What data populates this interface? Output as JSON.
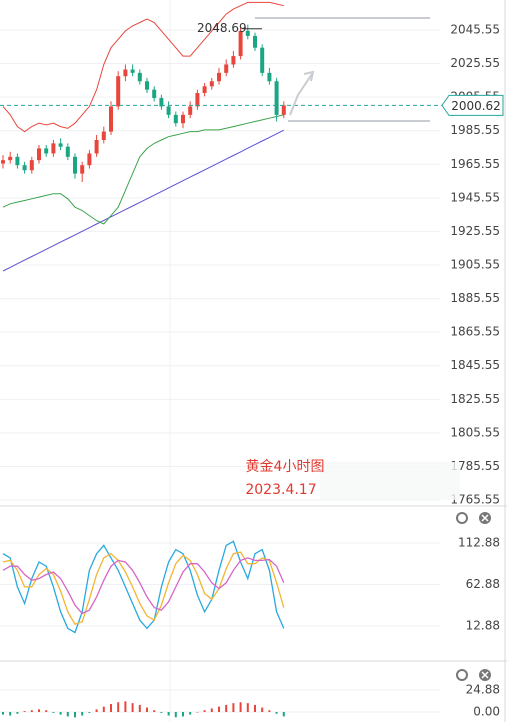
{
  "chart_data": [
    {
      "type": "candlestick",
      "open": [
        1966,
        1968,
        1970,
        1965,
        1962,
        1968,
        1975,
        1972,
        1978,
        1976,
        1970,
        1960,
        1965,
        1972,
        1980,
        1985,
        2000,
        2018,
        2022,
        2020,
        2015,
        2010,
        2005,
        2000,
        1995,
        1990,
        1995,
        2000,
        2008,
        2012,
        2015,
        2020,
        2025,
        2030,
        2045,
        2042,
        2035,
        2020,
        2015,
        1995
      ],
      "high": [
        1971,
        1973,
        1972,
        1967,
        1970,
        1977,
        1977,
        1980,
        1981,
        1978,
        1972,
        1967,
        1974,
        1983,
        1988,
        2003,
        2021,
        2025,
        2025,
        2022,
        2017,
        2012,
        2007,
        2003,
        1997,
        1997,
        2003,
        2010,
        2014,
        2017,
        2023,
        2028,
        2033,
        2047,
        2048.69,
        2044,
        2037,
        2023,
        2017,
        2003
      ],
      "low": [
        1963,
        1966,
        1963,
        1960,
        1960,
        1966,
        1970,
        1970,
        1974,
        1968,
        1957,
        1955,
        1963,
        1970,
        1978,
        1983,
        1998,
        2015,
        2018,
        2013,
        2008,
        2003,
        1998,
        1993,
        1988,
        1987,
        1993,
        1998,
        2006,
        2010,
        2013,
        2018,
        2023,
        2028,
        2040,
        2033,
        2018,
        2013,
        1991,
        1993
      ],
      "close": [
        1968,
        1970,
        1965,
        1962,
        1968,
        1975,
        1972,
        1978,
        1976,
        1970,
        1960,
        1965,
        1972,
        1980,
        1985,
        2000,
        2018,
        2022,
        2020,
        2015,
        2010,
        2005,
        2000,
        1995,
        1990,
        1995,
        2000,
        2008,
        2012,
        2015,
        2020,
        2025,
        2030,
        2045,
        2042,
        2035,
        2020,
        2015,
        1995,
        2000.62
      ],
      "up_color": "#e8463c",
      "down_color": "#1aa683",
      "series": [
        {
          "color": "#5b4fd6",
          "values": [
            1902,
            1904.15,
            1906.3,
            1908.45,
            1910.6,
            1912.75,
            1914.9,
            1917.05,
            1919.2,
            1921.35,
            1923.5,
            1925.65,
            1927.8,
            1929.95,
            1932.1,
            1934.25,
            1936.4,
            1938.55,
            1940.7,
            1942.85,
            1945,
            1947.15,
            1949.3,
            1951.45,
            1953.6,
            1955.75,
            1957.9,
            1960.05,
            1962.2,
            1964.35,
            1966.5,
            1968.65,
            1970.8,
            1972.95,
            1975.1,
            1977.25,
            1979.4,
            1981.55,
            1983.7,
            1985.85
          ]
        },
        {
          "color": "#e8463c",
          "values": [
            2000,
            1995,
            1988,
            1985,
            1988,
            1990,
            1989,
            1990,
            1988,
            1987,
            1990,
            1995,
            2000,
            2010,
            2025,
            2035,
            2040,
            2045,
            2048,
            2050,
            2052,
            2050,
            2045,
            2040,
            2035,
            2030,
            2030,
            2035,
            2040,
            2045,
            2050,
            2055,
            2058,
            2060,
            2062,
            2062,
            2062,
            2062,
            2061,
            2060
          ]
        },
        {
          "color": "#3aa34a",
          "values": [
            1940,
            1942,
            1943,
            1944,
            1945,
            1946,
            1947,
            1948,
            1948,
            1945,
            1940,
            1938,
            1935,
            1932,
            1930,
            1935,
            1940,
            1950,
            1960,
            1970,
            1975,
            1978,
            1980,
            1982,
            1983,
            1984,
            1985,
            1985,
            1986,
            1986,
            1986,
            1987,
            1988,
            1989,
            1990,
            1991,
            1992,
            1993,
            1994,
            1995
          ]
        }
      ],
      "ylim": [
        1762.6,
        2063.4
      ],
      "yticks": [
        1765.55,
        1785.55,
        1805.55,
        1825.55,
        1845.55,
        1865.55,
        1885.55,
        1905.55,
        1925.55,
        1945.55,
        1965.55,
        1985.55,
        2005.55,
        2025.55,
        2045.55
      ],
      "high_label": 2048.69,
      "last_price": 2000.62,
      "last_color": "#26a69a",
      "annotations": [
        "黄金4小时图",
        "2023.4.17"
      ]
    },
    {
      "type": "line",
      "series": [
        {
          "color": "#29a8e0",
          "values": [
            100,
            95,
            60,
            40,
            70,
            90,
            85,
            60,
            30,
            10,
            5,
            30,
            80,
            100,
            110,
            95,
            80,
            60,
            40,
            20,
            10,
            20,
            60,
            90,
            105,
            100,
            80,
            50,
            30,
            45,
            80,
            110,
            115,
            90,
            70,
            100,
            105,
            80,
            30,
            10
          ]
        },
        {
          "color": "#f2b531",
          "values": [
            90,
            92,
            80,
            60,
            60,
            75,
            82,
            75,
            55,
            30,
            15,
            18,
            45,
            75,
            95,
            100,
            92,
            78,
            60,
            40,
            25,
            20,
            38,
            65,
            88,
            98,
            92,
            75,
            52,
            45,
            58,
            82,
            100,
            102,
            88,
            88,
            95,
            92,
            65,
            35
          ]
        },
        {
          "color": "#d665c9",
          "values": [
            80,
            85,
            85,
            75,
            68,
            70,
            75,
            78,
            70,
            55,
            38,
            28,
            32,
            48,
            68,
            85,
            92,
            90,
            80,
            65,
            48,
            35,
            32,
            42,
            60,
            78,
            88,
            88,
            78,
            65,
            58,
            65,
            80,
            92,
            95,
            92,
            92,
            93,
            85,
            65
          ]
        }
      ],
      "ylim": [
        -28.1,
        156.3
      ],
      "yticks": [
        12.88,
        62.88,
        112.88
      ]
    },
    {
      "type": "bar",
      "values": [
        -3,
        -4,
        -2,
        1,
        2,
        3,
        2,
        -1,
        -3,
        -5,
        -6,
        -4,
        -1,
        3,
        6,
        9,
        11,
        12,
        10,
        8,
        5,
        2,
        -1,
        -4,
        -6,
        -5,
        -3,
        0,
        2,
        4,
        6,
        8,
        10,
        11,
        10,
        8,
        5,
        2,
        -2,
        -5
      ],
      "up_color": "#e8463c",
      "down_color": "#1aa683",
      "ylim": [
        -11.3,
        56.5
      ],
      "yticks": [
        {
          "value": 0,
          "label": "0.00"
        },
        24.88
      ]
    }
  ]
}
